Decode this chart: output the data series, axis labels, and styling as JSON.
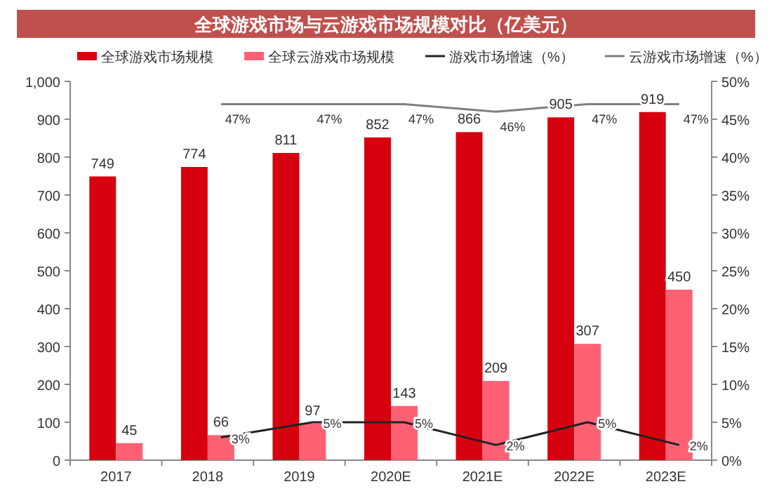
{
  "chart_data": {
    "type": "bar",
    "title": "全球游戏市场与云游戏市场规模对比（亿美元）",
    "categories": [
      "2017",
      "2018",
      "2019",
      "2020E",
      "2021E",
      "2022E",
      "2023E"
    ],
    "series": [
      {
        "name": "全球游戏市场规模",
        "color": "#d7000f",
        "values": [
          749,
          774,
          811,
          852,
          866,
          905,
          919
        ]
      },
      {
        "name": "全球云游戏市场规模",
        "color": "#ff6174",
        "values": [
          45,
          66,
          97,
          143,
          209,
          307,
          450
        ]
      },
      {
        "name": "游戏市场增速（%）",
        "type": "line",
        "axis": "y2",
        "color": "#222222",
        "values": [
          null,
          3,
          5,
          5,
          2,
          5,
          2
        ],
        "value_labels": [
          null,
          "3%",
          "5%",
          "5%",
          "2%",
          "5%",
          "2%"
        ]
      },
      {
        "name": "云游戏市场增速（%）",
        "type": "line",
        "axis": "y2",
        "color": "#808080",
        "values": [
          null,
          47,
          47,
          47,
          46,
          47,
          47
        ],
        "value_labels": [
          null,
          "47%",
          "47%",
          "47%",
          "46%",
          "47%",
          "47%"
        ]
      }
    ],
    "ylim": [
      0,
      1000
    ],
    "yticks": [
      0,
      100,
      200,
      300,
      400,
      500,
      600,
      700,
      800,
      900,
      {
        "value": 1000,
        "label": "1,000"
      }
    ],
    "y2lim": [
      0,
      50
    ],
    "y2ticks": [
      {
        "value": 0,
        "label": "0%"
      },
      {
        "value": 5,
        "label": "5%"
      },
      {
        "value": 10,
        "label": "10%"
      },
      {
        "value": 15,
        "label": "15%"
      },
      {
        "value": 20,
        "label": "20%"
      },
      {
        "value": 25,
        "label": "25%"
      },
      {
        "value": 30,
        "label": "30%"
      },
      {
        "value": 35,
        "label": "35%"
      },
      {
        "value": 40,
        "label": "40%"
      },
      {
        "value": 45,
        "label": "45%"
      },
      {
        "value": 50,
        "label": "50%"
      }
    ],
    "data_labels": true,
    "legend": "top",
    "grid": false
  }
}
